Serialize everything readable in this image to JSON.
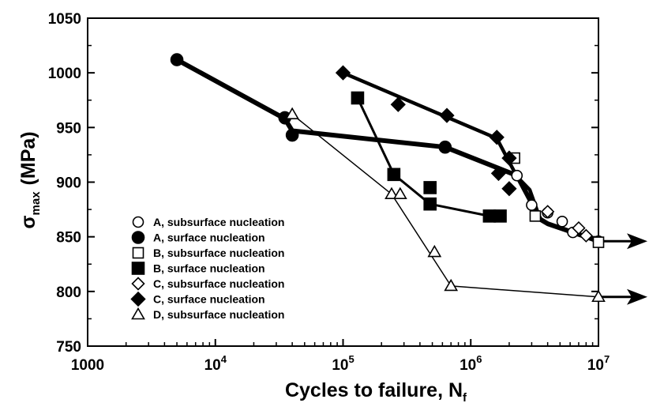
{
  "chart_data": {
    "type": "scatter",
    "title": "",
    "xlabel": "Cycles to failure, N",
    "xlabel_sub": "f",
    "ylabel": "σ",
    "ylabel_sub": "max",
    "ylabel_unit": "(MPa)",
    "xscale": "log",
    "xlim": [
      1000,
      10000000
    ],
    "ylim": [
      750,
      1050
    ],
    "grid": false,
    "legend_position": "lower-left",
    "x_ticks": [
      {
        "value": 1000,
        "base": "1000",
        "exp": ""
      },
      {
        "value": 10000,
        "base": "10",
        "exp": "4"
      },
      {
        "value": 100000,
        "base": "10",
        "exp": "5"
      },
      {
        "value": 1000000,
        "base": "10",
        "exp": "6"
      },
      {
        "value": 10000000,
        "base": "10",
        "exp": "7"
      }
    ],
    "y_ticks": [
      "750",
      "800",
      "850",
      "900",
      "950",
      "1000",
      "1050"
    ],
    "series": [
      {
        "name": "A, subsurface nucleation",
        "marker": "circle",
        "filled": false,
        "points": [
          [
            35000,
            958
          ],
          [
            2300000,
            906
          ],
          [
            3000000,
            879
          ],
          [
            4000000,
            872
          ],
          [
            5200000,
            864
          ],
          [
            6300000,
            854
          ],
          [
            10000000,
            846
          ]
        ]
      },
      {
        "name": "A, surface nucleation",
        "marker": "circle",
        "filled": true,
        "points": [
          [
            5000,
            1012
          ],
          [
            35000,
            959
          ],
          [
            40000,
            943
          ],
          [
            630000,
            932
          ]
        ]
      },
      {
        "name": "B, subsurface nucleation",
        "marker": "square",
        "filled": false,
        "points": [
          [
            2200000,
            922
          ],
          [
            3200000,
            869
          ],
          [
            10000000,
            845
          ]
        ]
      },
      {
        "name": "B, surface nucleation",
        "marker": "square",
        "filled": true,
        "points": [
          [
            130000,
            977
          ],
          [
            250000,
            907
          ],
          [
            480000,
            895
          ],
          [
            480000,
            880
          ],
          [
            1400000,
            869
          ],
          [
            1700000,
            869
          ]
        ]
      },
      {
        "name": "C, subsurface nucleation",
        "marker": "diamond",
        "filled": false,
        "points": [
          [
            4000000,
            873
          ],
          [
            7000000,
            858
          ],
          [
            8000000,
            851
          ]
        ]
      },
      {
        "name": "C, surface nucleation",
        "marker": "diamond",
        "filled": true,
        "points": [
          [
            100000,
            1000
          ],
          [
            270000,
            971
          ],
          [
            650000,
            961
          ],
          [
            1600000,
            941
          ],
          [
            2000000,
            922
          ],
          [
            1650000,
            908
          ],
          [
            2000000,
            894
          ]
        ]
      },
      {
        "name": "D, subsurface nucleation",
        "marker": "triangle",
        "filled": false,
        "points": [
          [
            40000,
            962
          ],
          [
            240000,
            889
          ],
          [
            280000,
            889
          ],
          [
            520000,
            836
          ],
          [
            700000,
            805
          ],
          [
            10000000,
            795
          ]
        ]
      }
    ],
    "fit_lines": [
      {
        "width": "thickest",
        "points": [
          [
            5000,
            1012
          ],
          [
            35000,
            958
          ],
          [
            40000,
            947
          ],
          [
            630000,
            932
          ],
          [
            2300000,
            906
          ],
          [
            3500000,
            866
          ],
          [
            4000000,
            862
          ],
          [
            10000000,
            846
          ]
        ]
      },
      {
        "width": "thick",
        "points": [
          [
            100000,
            1000
          ],
          [
            1600000,
            940
          ],
          [
            2300000,
            905
          ],
          [
            2900000,
            893
          ],
          [
            3500000,
            866
          ]
        ]
      },
      {
        "width": "medium",
        "points": [
          [
            130000,
            977
          ],
          [
            250000,
            907
          ],
          [
            480000,
            880
          ],
          [
            1400000,
            869
          ],
          [
            1700000,
            869
          ]
        ]
      },
      {
        "width": "thin",
        "points": [
          [
            40000,
            962
          ],
          [
            240000,
            889
          ],
          [
            700000,
            805
          ],
          [
            10000000,
            795
          ]
        ]
      }
    ],
    "arrows": [
      {
        "from": [
          10000000,
          846
        ],
        "y": 846
      },
      {
        "from": [
          10000000,
          795
        ],
        "y": 795
      }
    ]
  }
}
